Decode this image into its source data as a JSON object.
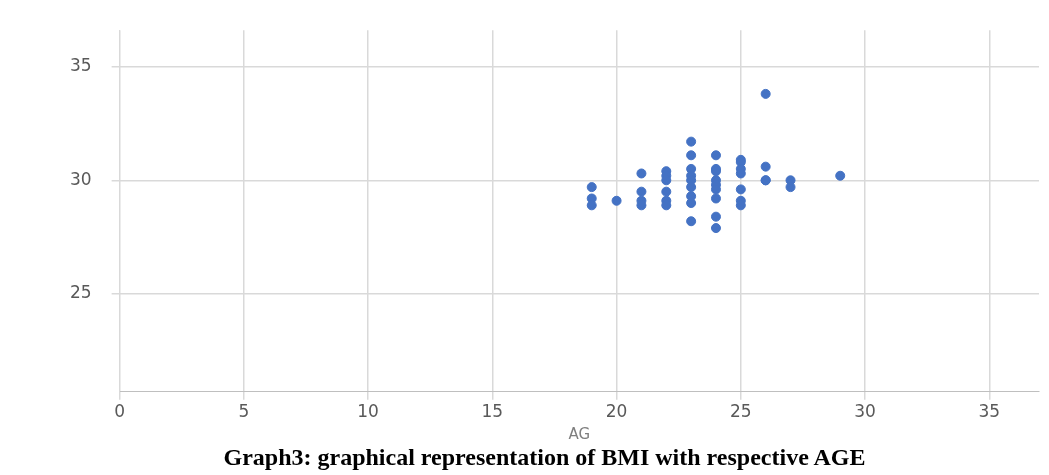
{
  "chart_data": {
    "type": "scatter",
    "title": "Graph3: graphical representation of BMI with respective AGE",
    "xlabel": "AG",
    "series": [
      {
        "color": "#4472c4",
        "x": [
          19,
          19,
          19,
          20,
          21,
          21,
          21,
          21,
          22,
          22,
          22,
          22,
          22,
          22,
          23,
          23,
          23,
          23,
          23,
          23,
          23,
          23,
          23,
          24,
          24,
          24,
          24,
          24,
          24,
          24,
          24,
          24,
          25,
          25,
          25,
          25,
          25,
          25,
          25,
          26,
          26,
          26,
          26,
          27,
          27,
          29
        ],
        "values": [
          29.7,
          29.2,
          28.9,
          29.1,
          30.3,
          29.5,
          29.1,
          28.9,
          30.4,
          30.2,
          30.0,
          29.5,
          29.1,
          28.9,
          31.7,
          31.1,
          30.5,
          30.2,
          30.0,
          29.7,
          29.3,
          29.0,
          28.2,
          31.1,
          30.5,
          30.4,
          30.0,
          29.8,
          29.6,
          29.2,
          28.4,
          27.9,
          30.9,
          30.8,
          30.5,
          30.3,
          29.6,
          29.1,
          28.9,
          33.8,
          30.6,
          30.0,
          30.0,
          30.0,
          29.7,
          30.2
        ]
      }
    ],
    "xlim": [
      0,
      37
    ],
    "xticks": [
      0,
      5,
      10,
      15,
      20,
      25,
      30,
      35
    ],
    "ylim": [
      20.7,
      36.6
    ],
    "yticks": [
      25,
      30,
      35
    ],
    "grid": true,
    "marker": "circle",
    "legend": false
  }
}
